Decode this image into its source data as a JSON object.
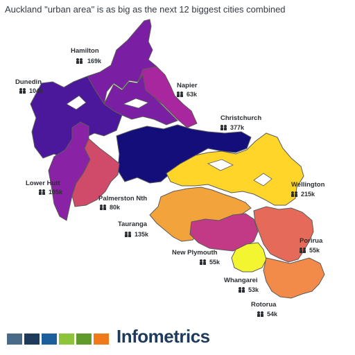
{
  "header": {
    "title": "Auckland \"urban area\" is as big as the next 12 biggest cities combined"
  },
  "cities": [
    {
      "name": "Hamilton",
      "population": "169k",
      "color": "#7a1fa3"
    },
    {
      "name": "Napier",
      "population": "63k",
      "color": "#a8279e"
    },
    {
      "name": "Dunedin",
      "population": "104k",
      "color": "#4b189c"
    },
    {
      "name": "Christchurch",
      "population": "377k",
      "color": "#140e7a"
    },
    {
      "name": "Lower Hutt",
      "population": "105k",
      "color": "#8a22a6"
    },
    {
      "name": "Palmerston Nth",
      "population": "80k",
      "color": "#d04a6a"
    },
    {
      "name": "Wellington",
      "population": "215k",
      "color": "#ffd52a"
    },
    {
      "name": "Tauranga",
      "population": "135k",
      "color": "#f2a33c"
    },
    {
      "name": "New Plymouth",
      "population": "55k",
      "color": "#c23a85"
    },
    {
      "name": "Porirua",
      "population": "55k",
      "color": "#e66a5a"
    },
    {
      "name": "Whangarei",
      "population": "53k",
      "color": "#f4f531"
    },
    {
      "name": "Rotorua",
      "population": "54k",
      "color": "#f28a4a"
    }
  ],
  "icons": {
    "population": "people-icon"
  },
  "footer": {
    "brand": "Infometrics",
    "swatches": [
      "#4a6a8a",
      "#1f3b5c",
      "#1d5f9c",
      "#8cc43c",
      "#5f9a2a",
      "#f07a1a"
    ]
  }
}
